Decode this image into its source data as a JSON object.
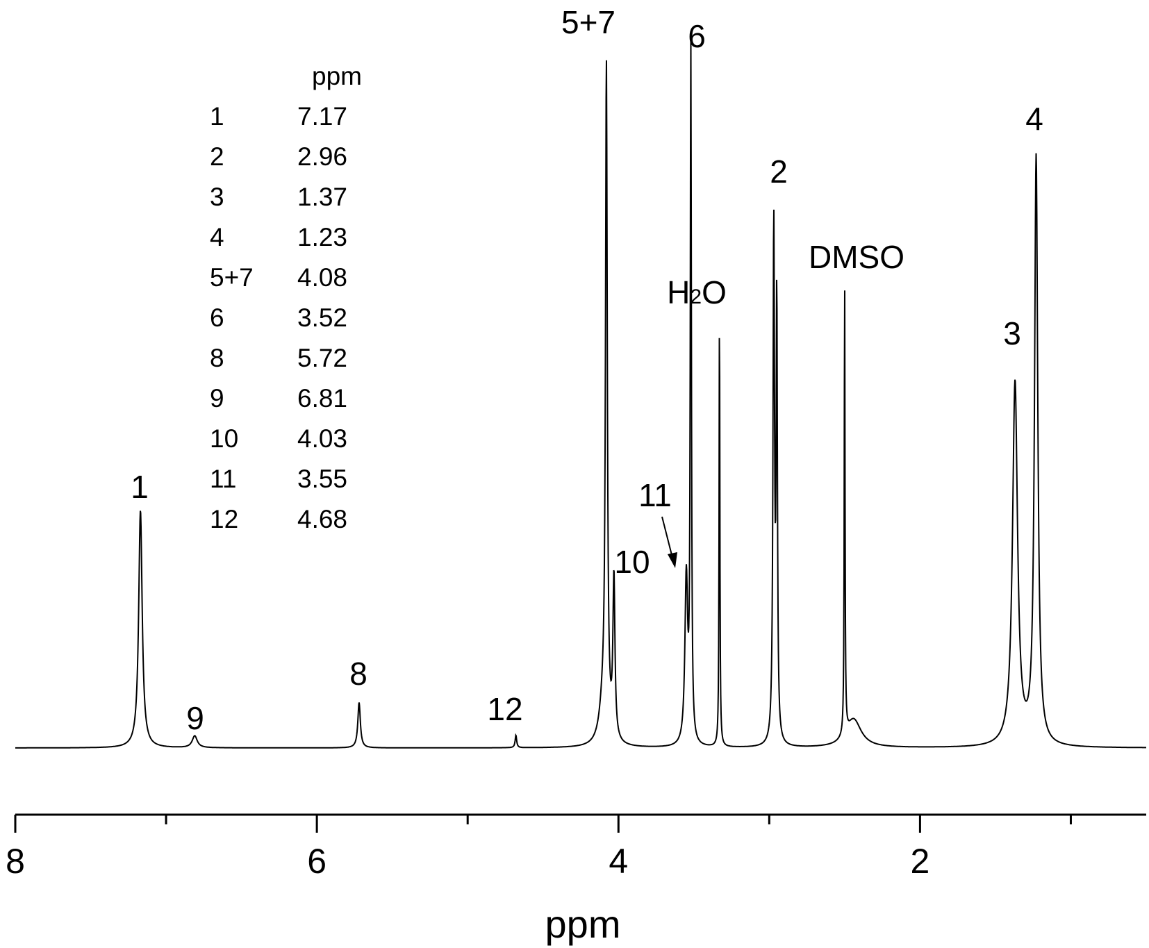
{
  "chart_data": {
    "type": "line",
    "xlabel": "ppm",
    "ylabel": "",
    "x_reversed": true,
    "xlim": [
      8,
      0.5
    ],
    "ylim": [
      0,
      1
    ],
    "grid": false,
    "x_major_ticks": [
      {
        "value": 8,
        "label": "8"
      },
      {
        "value": 6,
        "label": "6"
      },
      {
        "value": 4,
        "label": "4"
      },
      {
        "value": 2,
        "label": "2"
      }
    ],
    "x_minor_ticks": [
      7,
      5,
      3,
      1
    ],
    "peaks": [
      {
        "ppm": 7.17,
        "height": 0.34,
        "width": 0.014
      },
      {
        "ppm": 6.81,
        "height": 0.017,
        "width": 0.02
      },
      {
        "ppm": 5.72,
        "height": 0.065,
        "width": 0.01
      },
      {
        "ppm": 4.68,
        "height": 0.018,
        "width": 0.006
      },
      {
        "ppm": 4.1,
        "height": 0.06,
        "width": 0.03
      },
      {
        "ppm": 4.08,
        "height": 0.94,
        "width": 0.007
      },
      {
        "ppm": 4.03,
        "height": 0.23,
        "width": 0.008
      },
      {
        "ppm": 3.55,
        "height": 0.24,
        "width": 0.011
      },
      {
        "ppm": 3.52,
        "height": 0.99,
        "width": 0.0045
      },
      {
        "ppm": 3.33,
        "height": 0.64,
        "width": 0.003
      },
      {
        "ppm": 2.97,
        "height": 0.74,
        "width": 0.006
      },
      {
        "ppm": 2.95,
        "height": 0.62,
        "width": 0.005
      },
      {
        "ppm": 2.5,
        "height": 0.66,
        "width": 0.003
      },
      {
        "ppm": 2.44,
        "height": 0.04,
        "width": 0.06
      },
      {
        "ppm": 1.37,
        "height": 0.52,
        "width": 0.02
      },
      {
        "ppm": 1.23,
        "height": 0.84,
        "width": 0.013
      }
    ],
    "peak_labels": [
      {
        "text": "1",
        "ppm": 7.17
      },
      {
        "text": "9",
        "ppm": 6.81
      },
      {
        "text": "8",
        "ppm": 5.72
      },
      {
        "text": "12",
        "ppm": 4.68
      },
      {
        "text": "5+7",
        "ppm": 4.08
      },
      {
        "text": "10",
        "ppm": 4.03
      },
      {
        "text": "11",
        "ppm": 3.55
      },
      {
        "text": "6",
        "ppm": 3.52
      },
      {
        "text": "H",
        "subscript": "2",
        "suffix": "O",
        "ppm": 3.33
      },
      {
        "text": "2",
        "ppm": 2.96
      },
      {
        "text": "DMSO",
        "ppm": 2.5
      },
      {
        "text": "3",
        "ppm": 1.37
      },
      {
        "text": "4",
        "ppm": 1.23
      }
    ],
    "assignment_table": {
      "header": "ppm",
      "rows": [
        {
          "peak": "1",
          "ppm": "7.17"
        },
        {
          "peak": "2",
          "ppm": "2.96"
        },
        {
          "peak": "3",
          "ppm": "1.37"
        },
        {
          "peak": "4",
          "ppm": "1.23"
        },
        {
          "peak": "5+7",
          "ppm": "4.08"
        },
        {
          "peak": "6",
          "ppm": "3.52"
        },
        {
          "peak": "8",
          "ppm": "5.72"
        },
        {
          "peak": "9",
          "ppm": "6.81"
        },
        {
          "peak": "10",
          "ppm": "4.03"
        },
        {
          "peak": "11",
          "ppm": "3.55"
        },
        {
          "peak": "12",
          "ppm": "4.68"
        }
      ]
    }
  }
}
